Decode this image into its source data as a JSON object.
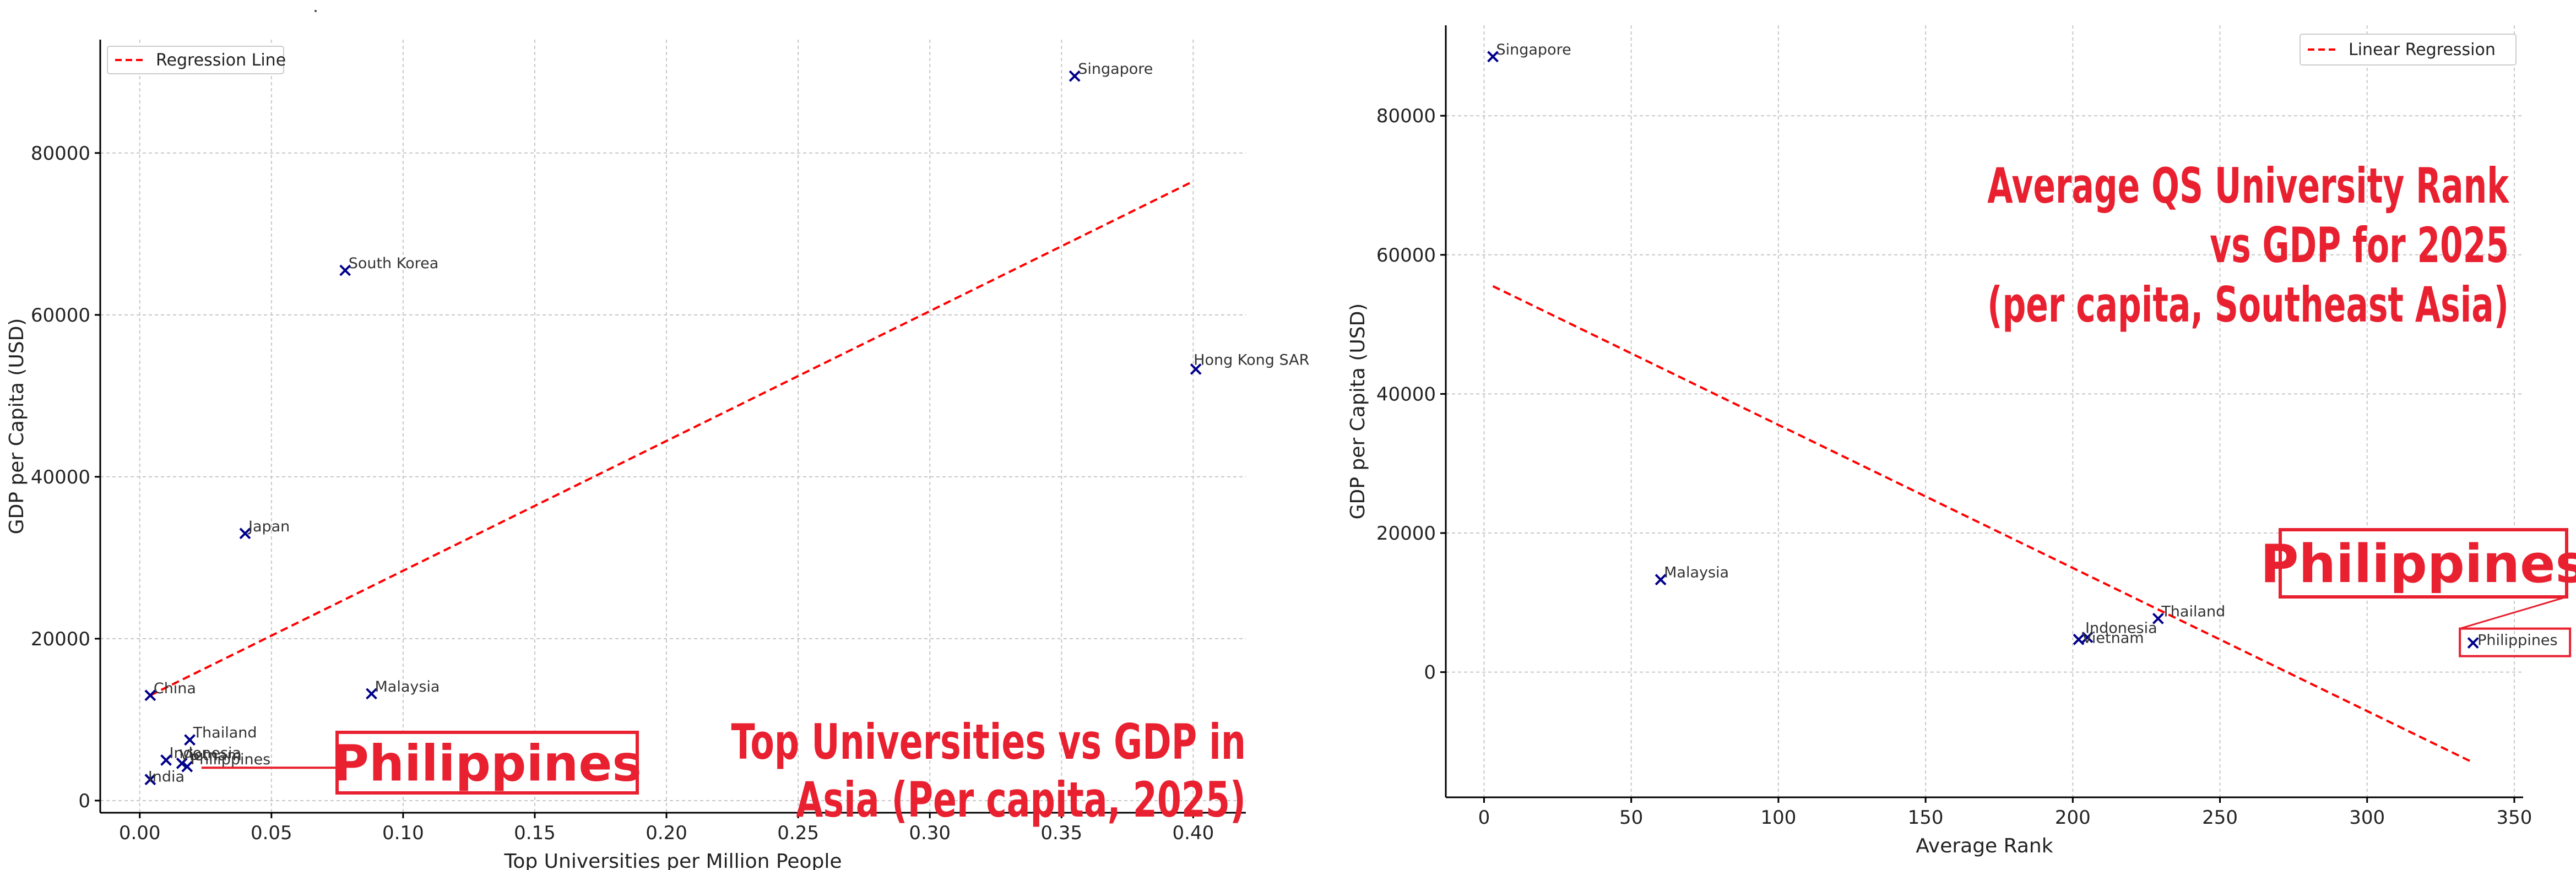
{
  "chart_data": [
    {
      "type": "scatter",
      "xlabel": "Top Universities per Million People",
      "ylabel": "GDP per Capita (USD)",
      "xlim": [
        -0.015,
        0.42
      ],
      "ylim": [
        -1500,
        94000
      ],
      "xticks": [
        0.0,
        0.05,
        0.1,
        0.15,
        0.2,
        0.25,
        0.3,
        0.35,
        0.4
      ],
      "xtick_labels": [
        "0.00",
        "0.05",
        "0.10",
        "0.15",
        "0.20",
        "0.25",
        "0.30",
        "0.35",
        "0.40"
      ],
      "yticks": [
        0,
        20000,
        40000,
        60000,
        80000
      ],
      "ytick_labels": [
        "0",
        "20000",
        "40000",
        "60000",
        "80000"
      ],
      "grid": true,
      "legend_position": "top-left",
      "legend": [
        "Regression Line"
      ],
      "marker_color": "#00008b",
      "line_color": "#ff0000",
      "points": [
        {
          "label": "Singapore",
          "x": 0.355,
          "y": 89500
        },
        {
          "label": "South Korea",
          "x": 0.078,
          "y": 65500
        },
        {
          "label": "Hong Kong SAR",
          "x": 0.401,
          "y": 53300
        },
        {
          "label": "Japan",
          "x": 0.04,
          "y": 33000
        },
        {
          "label": "China",
          "x": 0.004,
          "y": 13000
        },
        {
          "label": "Malaysia",
          "x": 0.088,
          "y": 13200
        },
        {
          "label": "Indonesia",
          "x": 0.01,
          "y": 5000
        },
        {
          "label": "Philippines",
          "x": 0.018,
          "y": 4200
        },
        {
          "label": "Vietnam",
          "x": 0.016,
          "y": 4600
        },
        {
          "label": "Thailand",
          "x": 0.019,
          "y": 7500
        },
        {
          "label": "India",
          "x": 0.004,
          "y": 2600
        }
      ],
      "regression": {
        "x": [
          0.004,
          0.4
        ],
        "y": [
          13000,
          76500
        ]
      },
      "title_lines": [
        "Top Universities  vs GDP in",
        "Asia (Per capita, 2025)"
      ],
      "callout": "Philippines"
    },
    {
      "type": "scatter",
      "xlabel": "Average Rank",
      "ylabel": "GDP per Capita (USD)",
      "xlim": [
        -13,
        353
      ],
      "ylim": [
        -18000,
        93000
      ],
      "xticks": [
        0,
        50,
        100,
        150,
        200,
        250,
        300,
        350
      ],
      "xtick_labels": [
        "0",
        "50",
        "100",
        "150",
        "200",
        "250",
        "300",
        "350"
      ],
      "yticks": [
        0,
        20000,
        40000,
        60000,
        80000
      ],
      "ytick_labels": [
        "0",
        "20000",
        "40000",
        "60000",
        "80000"
      ],
      "grid": true,
      "legend_position": "top-right",
      "legend": [
        "Linear Regression"
      ],
      "marker_color": "#00008b",
      "line_color": "#ff0000",
      "points": [
        {
          "label": "Singapore",
          "x": 3,
          "y": 88500
        },
        {
          "label": "Malaysia",
          "x": 60,
          "y": 13300
        },
        {
          "label": "Thailand",
          "x": 229,
          "y": 7700
        },
        {
          "label": "Indonesia",
          "x": 205,
          "y": 5000
        },
        {
          "label": "Vietnam",
          "x": 202,
          "y": 4700
        },
        {
          "label": "Philippines",
          "x": 336,
          "y": 4200
        }
      ],
      "regression": {
        "x": [
          3,
          336
        ],
        "y": [
          55500,
          -13000
        ]
      },
      "title_lines": [
        "Average QS University Rank",
        "vs GDP for 2025",
        "(per capita, Southeast Asia)"
      ],
      "callout": "Philippines"
    }
  ]
}
